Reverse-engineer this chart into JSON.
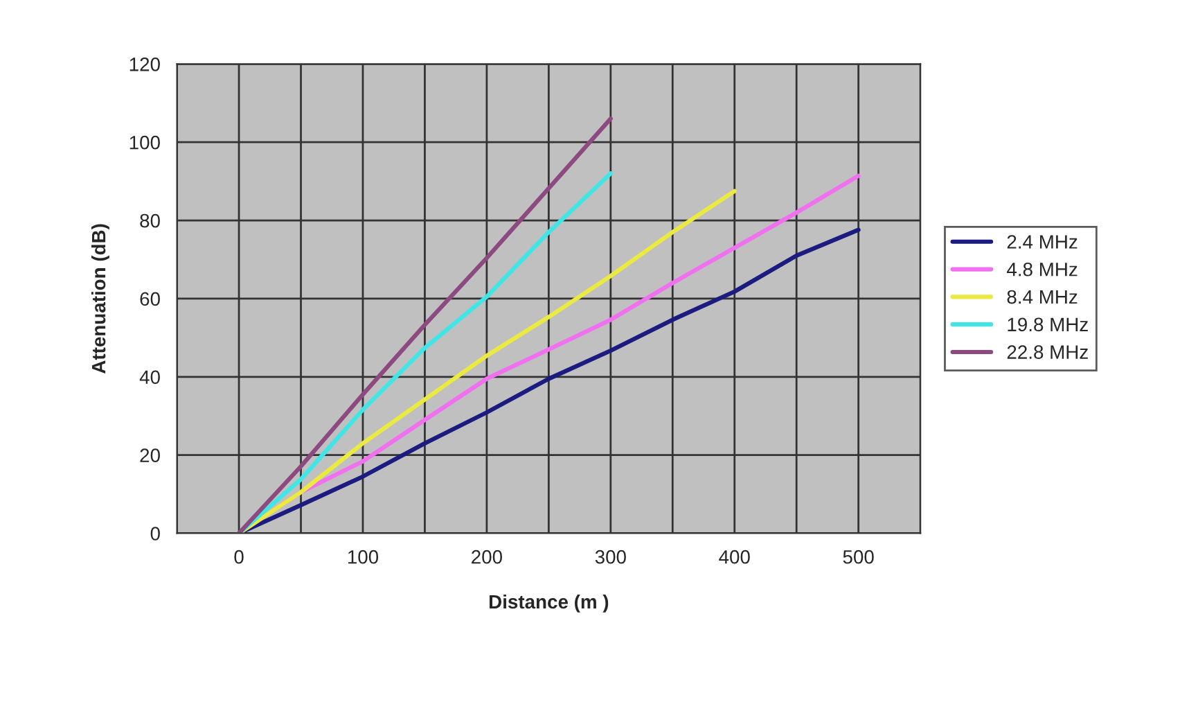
{
  "chart_data": {
    "type": "line",
    "xlabel": "Distance (m )",
    "ylabel": "Attenuation (dB)",
    "x": [
      0,
      50,
      100,
      150,
      200,
      250,
      300,
      350,
      400,
      450,
      500
    ],
    "series": [
      {
        "name": "2.4 MHz",
        "color": "#1c1c80",
        "values": [
          0,
          7.2,
          14.5,
          23,
          30.9,
          39.5,
          46.7,
          54.6,
          61.8,
          71,
          77.6
        ]
      },
      {
        "name": "4.8 MHz",
        "color": "#f070f0",
        "values": [
          0,
          10.5,
          18.4,
          29,
          39.5,
          47,
          54.6,
          64,
          73,
          82,
          91.4
        ]
      },
      {
        "name": "8.4 MHz",
        "color": "#eaea40",
        "values": [
          0,
          10.5,
          23,
          34.2,
          45.4,
          55.3,
          65.8,
          77,
          87.5,
          null,
          null
        ]
      },
      {
        "name": "19.8 MHz",
        "color": "#40e6e6",
        "values": [
          0,
          13.8,
          31.6,
          47.4,
          60.5,
          77,
          92,
          null,
          null,
          null,
          null
        ]
      },
      {
        "name": "22.8 MHz",
        "color": "#8c4a80",
        "values": [
          0,
          17.1,
          35.5,
          53.3,
          70.4,
          88.2,
          106,
          null,
          null,
          null,
          null
        ]
      }
    ],
    "xlim": [
      -50,
      550
    ],
    "xticks": [
      {
        "value": -50,
        "label": null
      },
      0,
      {
        "value": 50,
        "label": null
      },
      100,
      {
        "value": 150,
        "label": null
      },
      200,
      {
        "value": 250,
        "label": null
      },
      300,
      {
        "value": 350,
        "label": null
      },
      400,
      {
        "value": 450,
        "label": null
      },
      500,
      {
        "value": 550,
        "label": null
      }
    ],
    "ylim": [
      0,
      120
    ],
    "yticks": [
      0,
      20,
      40,
      60,
      80,
      100,
      120
    ],
    "grid": true,
    "legend": "right",
    "marker": "none",
    "line_style": "solid"
  }
}
